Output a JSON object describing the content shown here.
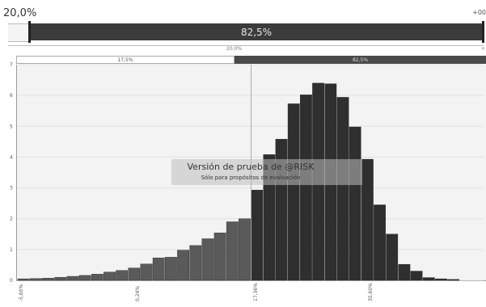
{
  "top_slider": {
    "left_value": "20,0%",
    "right_value": "+00",
    "bar_label": "82,5%"
  },
  "sub_scale": {
    "mid_label": "20,0%",
    "right_label": "+"
  },
  "percent_band": {
    "left_label": "17,5%",
    "right_label": "82,5%"
  },
  "watermark": {
    "title": "Versión de prueba de @RISK",
    "subtitle": "Sólo para propósitos de evaluación"
  },
  "chart_data": {
    "type": "bar",
    "ylim": [
      0,
      7
    ],
    "yticks": [
      "0",
      "1",
      "2",
      "3",
      "4",
      "5",
      "6",
      "7"
    ],
    "xtick_labels": [
      "-5,60%",
      "0,24%",
      "17,36%",
      "35,60%"
    ],
    "values": [
      0.05,
      0.06,
      0.07,
      0.1,
      0.13,
      0.16,
      0.2,
      0.27,
      0.32,
      0.4,
      0.53,
      0.73,
      0.75,
      0.98,
      1.13,
      1.35,
      1.54,
      1.9,
      2.0,
      2.93,
      4.08,
      4.58,
      5.73,
      6.02,
      6.4,
      6.38,
      5.94,
      4.98,
      3.93,
      2.45,
      1.5,
      0.52,
      0.3,
      0.09,
      0.05,
      0.03
    ],
    "highlight_start_index": 19,
    "colors": {
      "left_bars": "#5a5a5a",
      "right_bars": "#2f2f2f",
      "marker_line": "#aaaaaa"
    }
  }
}
